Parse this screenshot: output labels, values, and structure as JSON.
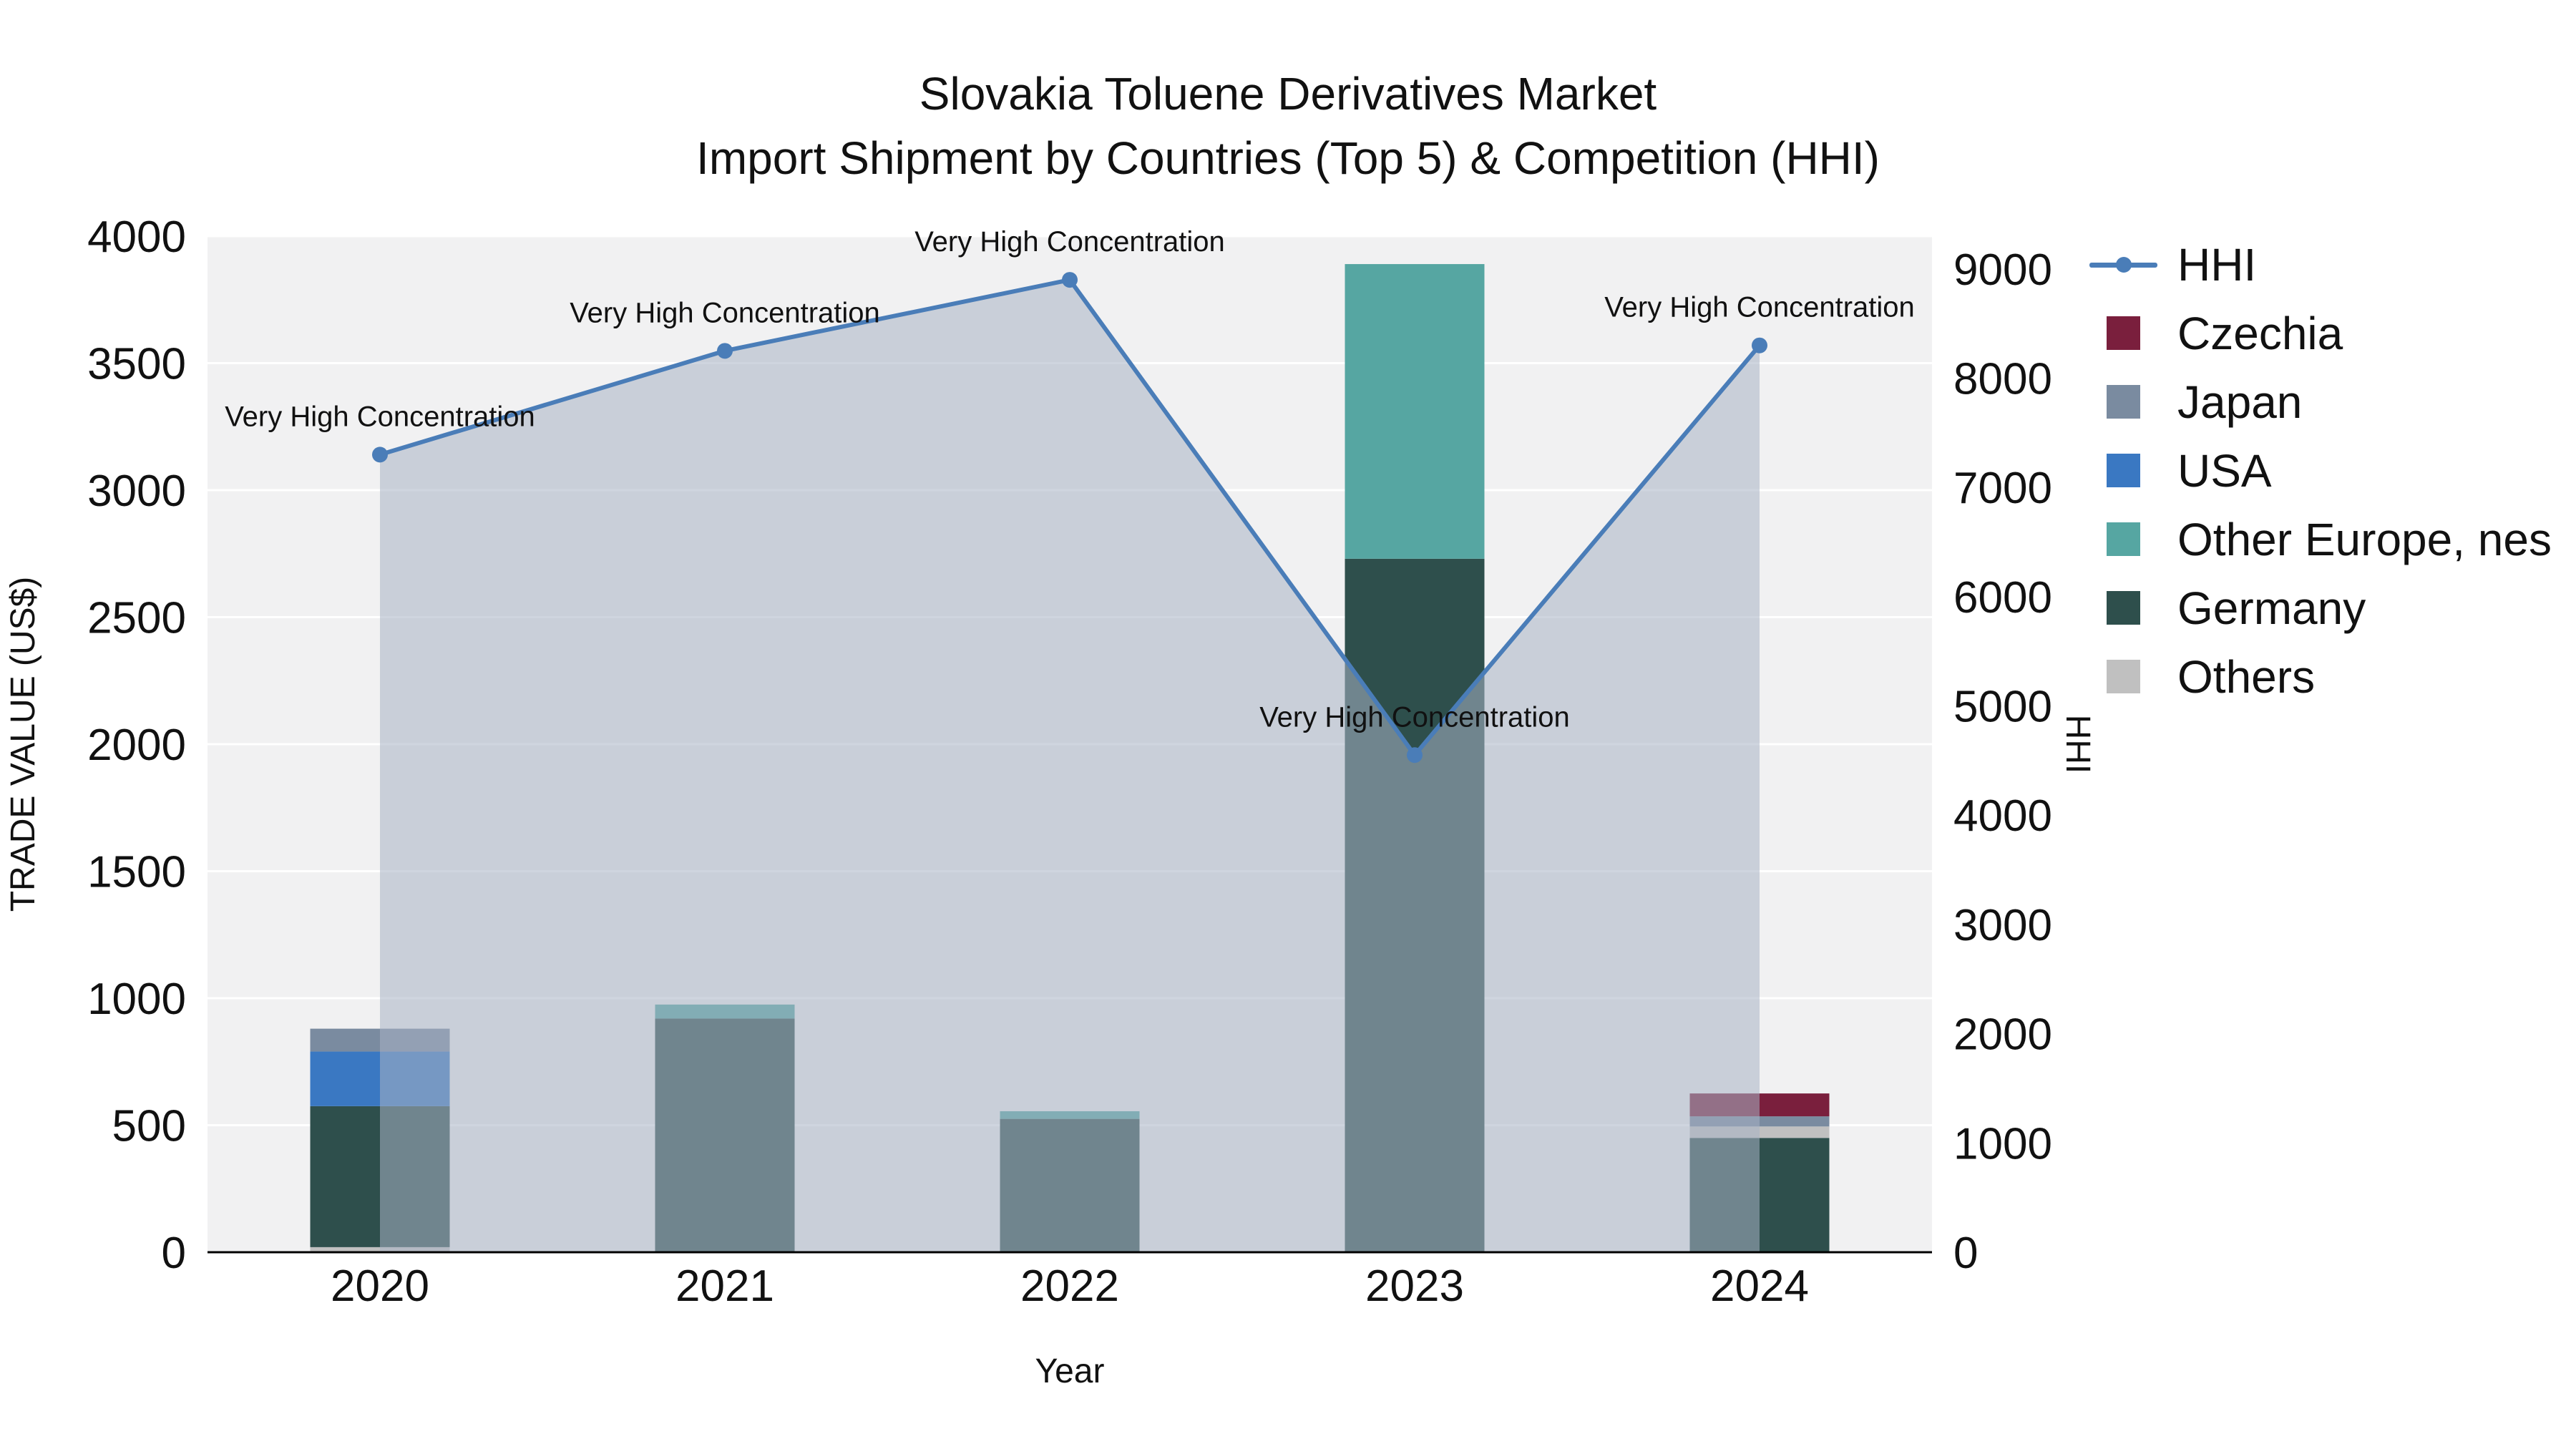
{
  "title": {
    "line1": "Slovakia Toluene Derivatives Market",
    "line2": "Import Shipment by Countries (Top 5) & Competition (HHI)"
  },
  "chart_data": {
    "type": "combo_stacked_bar_line",
    "title": "Slovakia Toluene Derivatives Market Import Shipment by Countries (Top 5) & Competition (HHI)",
    "categories": [
      "2020",
      "2021",
      "2022",
      "2023",
      "2024"
    ],
    "x_axis": {
      "title": "Year"
    },
    "left_axis": {
      "title": "TRADE VALUE (US$)",
      "range": [
        0,
        4000
      ],
      "ticks": [
        0,
        500,
        1000,
        1500,
        2000,
        2500,
        3000,
        3500,
        4000
      ]
    },
    "right_axis": {
      "title": "HHI",
      "range": [
        0,
        9300
      ],
      "ticks": [
        0,
        1000,
        2000,
        3000,
        4000,
        5000,
        6000,
        7000,
        8000,
        9000
      ]
    },
    "plot_bg": "#f1f1f2",
    "grid_color": "#ffffff",
    "bar_series": [
      {
        "name": "Czechia",
        "color": "#7a1f3d",
        "values": [
          0,
          0,
          0,
          0,
          90
        ]
      },
      {
        "name": "Japan",
        "color": "#7a8ba0",
        "values": [
          90,
          0,
          0,
          0,
          40
        ]
      },
      {
        "name": "USA",
        "color": "#3a78c2",
        "values": [
          215,
          0,
          0,
          0,
          0
        ]
      },
      {
        "name": "Other Europe, nes",
        "color": "#56a6a2",
        "values": [
          0,
          55,
          30,
          1160,
          0
        ]
      },
      {
        "name": "Germany",
        "color": "#2e4f4c",
        "values": [
          555,
          920,
          525,
          2730,
          450
        ]
      },
      {
        "name": "Others",
        "color": "#c0c0c0",
        "values": [
          20,
          0,
          0,
          0,
          45
        ]
      }
    ],
    "stack_order_bottom_to_top": {
      "2020": [
        "Others",
        "Germany",
        "USA",
        "Japan"
      ],
      "2021": [
        "Germany",
        "Other Europe, nes"
      ],
      "2022": [
        "Germany",
        "Other Europe, nes"
      ],
      "2023": [
        "Germany",
        "Other Europe, nes"
      ],
      "2024": [
        "Germany",
        "Others",
        "Japan",
        "Czechia"
      ]
    },
    "line_series": {
      "name": "HHI",
      "color": "#4a7db8",
      "fill_color": "rgba(168,178,196,0.55)",
      "values": [
        7300,
        8250,
        8900,
        4550,
        8300
      ]
    },
    "annotations": [
      {
        "year": "2020",
        "text": "Very High Concentration"
      },
      {
        "year": "2021",
        "text": "Very High Concentration"
      },
      {
        "year": "2022",
        "text": "Very High Concentration"
      },
      {
        "year": "2023",
        "text": "Very High Concentration"
      },
      {
        "year": "2024",
        "text": "Very High Concentration"
      }
    ]
  },
  "legend": {
    "items": [
      {
        "label": "HHI",
        "type": "line",
        "color": "#4a7db8"
      },
      {
        "label": "Czechia",
        "type": "square",
        "color": "#7a1f3d"
      },
      {
        "label": "Japan",
        "type": "square",
        "color": "#7a8ba0"
      },
      {
        "label": "USA",
        "type": "square",
        "color": "#3a78c2"
      },
      {
        "label": "Other Europe, nes",
        "type": "square",
        "color": "#56a6a2"
      },
      {
        "label": "Germany",
        "type": "square",
        "color": "#2e4f4c"
      },
      {
        "label": "Others",
        "type": "square",
        "color": "#c0c0c0"
      }
    ]
  }
}
